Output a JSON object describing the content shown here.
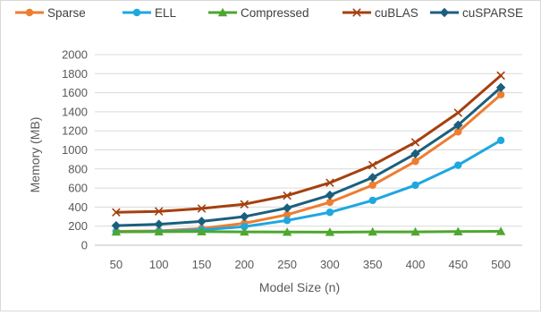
{
  "chart_data": {
    "type": "line",
    "title": "",
    "xlabel": "Model Size (n)",
    "ylabel": "Memory (MB)",
    "x": [
      50,
      100,
      150,
      200,
      250,
      300,
      350,
      400,
      450,
      500
    ],
    "ylim": [
      0,
      2000
    ],
    "yticks": [
      0,
      200,
      400,
      600,
      800,
      1000,
      1200,
      1400,
      1600,
      1800,
      2000
    ],
    "grid": true,
    "legend_position": "top",
    "series": [
      {
        "name": "Sparse",
        "color": "#ED7D31",
        "marker": "circle",
        "values": [
          145,
          150,
          175,
          230,
          320,
          450,
          630,
          880,
          1190,
          1580
        ]
      },
      {
        "name": "ELL",
        "color": "#1FA7E0",
        "marker": "circle",
        "values": [
          140,
          145,
          160,
          195,
          260,
          345,
          470,
          630,
          840,
          1100
        ]
      },
      {
        "name": "Compressed",
        "color": "#4EA72E",
        "marker": "triangle",
        "values": [
          140,
          142,
          143,
          140,
          138,
          137,
          140,
          140,
          143,
          145
        ]
      },
      {
        "name": "cuBLAS",
        "color": "#A5400F",
        "marker": "x",
        "values": [
          345,
          355,
          385,
          430,
          520,
          655,
          840,
          1080,
          1390,
          1780
        ]
      },
      {
        "name": "cuSPARSE",
        "color": "#1B5F7E",
        "marker": "diamond",
        "values": [
          205,
          220,
          250,
          300,
          390,
          525,
          710,
          960,
          1260,
          1655
        ]
      }
    ]
  }
}
